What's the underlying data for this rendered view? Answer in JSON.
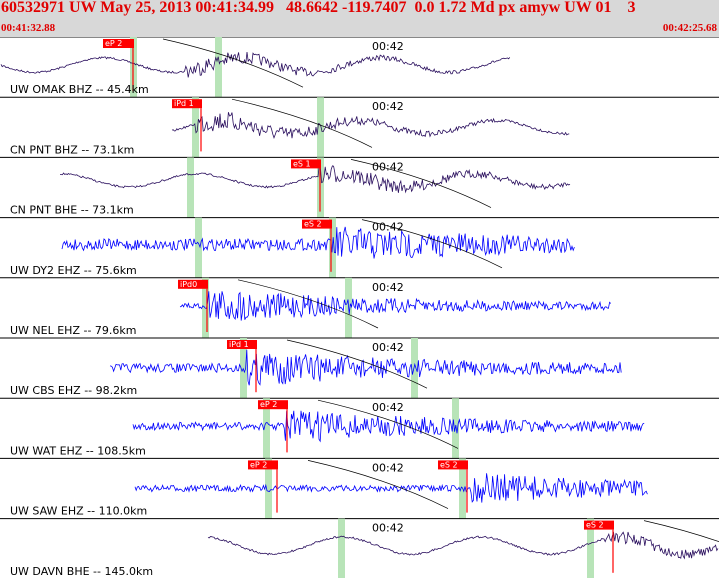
{
  "header": {
    "title": "60532971 UW May 25, 2013 00:41:34.99   48.6642 -119.7407  0.0 1.72 Md px amyw UW 01    3",
    "start_time": "00:41:32.88",
    "end_time": "00:42:25.68"
  },
  "colors": {
    "header_bg": "#d8d8d8",
    "header_text": "#e00000",
    "trace_bhz": "#2a0f5e",
    "trace_ehz": "#0000ff",
    "pick_bg": "#ff0000",
    "marker_green": "#b8e4b8"
  },
  "traces": [
    {
      "label": "UW OMAK BHZ -- 45.4km",
      "tick": "00:42",
      "color": "#2a0f5e",
      "picks": [
        {
          "label": "eP 2"
        }
      ],
      "noise": 6,
      "amp": 22,
      "start": 1,
      "end": 510,
      "onset": 185
    },
    {
      "label": "CN PNT BHZ -- 73.1km",
      "tick": "00:42",
      "color": "#2a0f5e",
      "picks": [
        {
          "label": "iPd 1"
        }
      ],
      "noise": 8,
      "amp": 20,
      "start": 172,
      "end": 570,
      "onset": 195
    },
    {
      "label": "CN PNT BHE -- 73.1km",
      "tick": "00:42",
      "color": "#2a0f5e",
      "picks": [
        {
          "label": "eS 1"
        }
      ],
      "noise": 7,
      "amp": 20,
      "start": 60,
      "end": 570,
      "onset": 318
    },
    {
      "label": "UW DY2 EHZ -- 75.6km",
      "tick": "00:42",
      "color": "#0000ff",
      "picks": [
        {
          "label": "eS 2"
        }
      ],
      "noise": 9,
      "amp": 22,
      "start": 62,
      "end": 575,
      "onset": 330
    },
    {
      "label": "UW NEL EHZ -- 79.6km",
      "tick": "00:42",
      "color": "#0000ff",
      "picks": [
        {
          "label": "iPd0"
        }
      ],
      "noise": 5,
      "amp": 24,
      "start": 180,
      "end": 612,
      "onset": 207
    },
    {
      "label": "UW CBS EHZ -- 98.2km",
      "tick": "00:42",
      "color": "#0000ff",
      "picks": [
        {
          "label": "iPd 1"
        }
      ],
      "noise": 7,
      "amp": 24,
      "start": 110,
      "end": 622,
      "onset": 246
    },
    {
      "label": "UW WAT EHZ -- 108.5km",
      "tick": "00:42",
      "color": "#0000ff",
      "picks": [
        {
          "label": "eP 2"
        }
      ],
      "noise": 6,
      "amp": 22,
      "start": 133,
      "end": 645,
      "onset": 285
    },
    {
      "label": "UW SAW EHZ -- 110.0km",
      "tick": "00:42",
      "color": "#0000ff",
      "picks": [
        {
          "label": "eP 2"
        },
        {
          "label": "eS 2"
        }
      ],
      "noise": 5,
      "amp": 22,
      "start": 135,
      "end": 648,
      "onset": 470
    },
    {
      "label": "UW DAVN BHE -- 145.0km",
      "tick": "00:42",
      "color": "#2a0f5e",
      "picks": [
        {
          "label": "eS 2"
        }
      ],
      "noise": 5,
      "amp": 26,
      "start": 208,
      "end": 719,
      "onset": 605
    }
  ]
}
